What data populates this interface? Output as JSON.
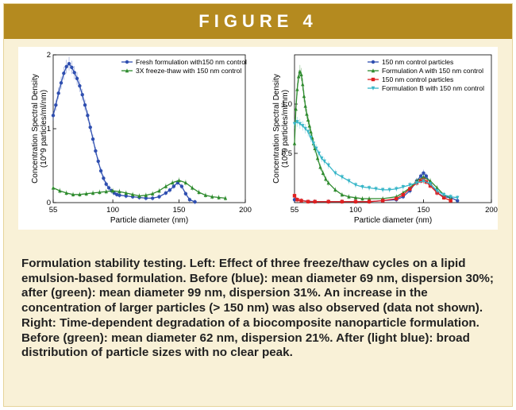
{
  "figure_label": "FIGURE 4",
  "caption": "Formulation stability testing. Left: Effect of three freeze/thaw cycles on a lipid emulsion-based formulation. Before (blue): mean diameter 69 nm, dispersion 30%; after (green): mean diameter 99 nm, dispersion 31%. An increase in the concentration of larger particles (> 150 nm) was also observed (data not shown). Right: Time-dependent degradation of a biocomposite nanoparticle formulation. Before (green): mean diameter 62 nm, dispersion 21%. After (light blue): broad distribution of particle sizes with no clear peak.",
  "colors": {
    "banner": "#b48a1f",
    "background": "#f9f1d7",
    "blue": "#2f4fb0",
    "green": "#2e8b2e",
    "red": "#e02020",
    "light_blue": "#38b6c8"
  },
  "chart_data": [
    {
      "type": "line",
      "xlabel": "Particle diameter (nm)",
      "ylabel_line1": "Concentration Spectral Density",
      "ylabel_line2": "(10^9 particles/ml/nm)",
      "xlim": [
        55,
        200
      ],
      "ylim": [
        0,
        2
      ],
      "xticks": [
        55,
        100,
        150,
        200
      ],
      "yticks": [
        0,
        1,
        2
      ],
      "legend_position": "top-right",
      "series": [
        {
          "name": "Fresh formulation with150 nm control",
          "color": "#2f4fb0",
          "marker": "circle",
          "x": [
            55,
            57,
            59,
            61,
            63,
            65,
            67,
            69,
            71,
            73,
            75,
            77,
            79,
            81,
            83,
            85,
            87,
            89,
            91,
            93,
            95,
            97,
            99,
            101,
            103,
            105,
            110,
            115,
            120,
            125,
            130,
            135,
            140,
            143,
            146,
            149,
            152,
            155,
            158,
            162
          ],
          "y": [
            1.18,
            1.32,
            1.48,
            1.62,
            1.75,
            1.84,
            1.88,
            1.83,
            1.76,
            1.68,
            1.58,
            1.46,
            1.32,
            1.18,
            1.02,
            0.86,
            0.7,
            0.56,
            0.43,
            0.33,
            0.25,
            0.2,
            0.16,
            0.13,
            0.11,
            0.1,
            0.09,
            0.08,
            0.07,
            0.06,
            0.06,
            0.08,
            0.13,
            0.17,
            0.22,
            0.27,
            0.22,
            0.12,
            0.04,
            0.01
          ]
        },
        {
          "name": "3X freeze-thaw with 150 nm control",
          "color": "#2e8b2e",
          "marker": "triangle",
          "x": [
            55,
            60,
            65,
            70,
            75,
            80,
            85,
            90,
            95,
            100,
            105,
            110,
            115,
            120,
            125,
            130,
            135,
            140,
            145,
            150,
            155,
            160,
            165,
            170,
            175,
            180,
            185
          ],
          "y": [
            0.2,
            0.16,
            0.13,
            0.11,
            0.11,
            0.12,
            0.13,
            0.14,
            0.15,
            0.16,
            0.15,
            0.13,
            0.11,
            0.09,
            0.1,
            0.12,
            0.16,
            0.22,
            0.27,
            0.3,
            0.27,
            0.2,
            0.14,
            0.1,
            0.08,
            0.07,
            0.06
          ]
        }
      ]
    },
    {
      "type": "line",
      "xlabel": "Particle diameter (nm)",
      "ylabel_line1": "Concentration Spectral Density",
      "ylabel_line2": "(10^9 particles/ml/nm)",
      "xlim": [
        55,
        200
      ],
      "ylim": [
        0,
        1.5
      ],
      "xticks": [
        55,
        100,
        150,
        200
      ],
      "yticks": [
        0.5,
        1.0
      ],
      "ytick_labels": [
        "0.5",
        "1.0"
      ],
      "legend_position": "top-right",
      "series": [
        {
          "name": "150 nm control particles",
          "color": "#2f4fb0",
          "marker": "circle",
          "x": [
            55,
            60,
            70,
            80,
            90,
            100,
            110,
            120,
            130,
            135,
            140,
            145,
            148,
            150,
            152,
            155,
            160,
            165,
            170,
            175
          ],
          "y": [
            0.03,
            0.02,
            0.01,
            0.01,
            0.01,
            0.01,
            0.01,
            0.02,
            0.03,
            0.06,
            0.12,
            0.22,
            0.27,
            0.3,
            0.27,
            0.2,
            0.1,
            0.06,
            0.05,
            0.02
          ]
        },
        {
          "name": "Formulation A with 150 nm control",
          "color": "#2e8b2e",
          "marker": "triangle",
          "x": [
            55,
            56,
            57,
            58,
            59,
            60,
            61,
            62,
            63,
            64,
            65,
            66,
            67,
            68,
            69,
            70,
            72,
            74,
            76,
            78,
            80,
            85,
            90,
            95,
            100,
            105,
            110,
            120,
            130,
            135,
            140,
            145,
            150,
            155,
            160,
            165,
            170
          ],
          "y": [
            0.6,
            0.95,
            1.15,
            1.28,
            1.33,
            1.3,
            1.2,
            1.08,
            0.98,
            0.9,
            0.84,
            0.78,
            0.72,
            0.66,
            0.6,
            0.55,
            0.45,
            0.36,
            0.3,
            0.24,
            0.2,
            0.13,
            0.08,
            0.06,
            0.05,
            0.04,
            0.04,
            0.04,
            0.06,
            0.1,
            0.15,
            0.22,
            0.26,
            0.22,
            0.15,
            0.08,
            0.05
          ]
        },
        {
          "name": "150 nm control particles",
          "color": "#e02020",
          "marker": "square",
          "x": [
            55,
            57,
            60,
            65,
            70,
            80,
            90,
            100,
            110,
            120,
            130,
            135,
            140,
            145,
            148,
            150,
            152,
            155,
            160,
            165,
            170
          ],
          "y": [
            0.07,
            0.03,
            0.02,
            0.01,
            0.01,
            0.01,
            0.01,
            0.01,
            0.01,
            0.02,
            0.04,
            0.08,
            0.14,
            0.2,
            0.22,
            0.23,
            0.21,
            0.17,
            0.1,
            0.05,
            0.02
          ]
        },
        {
          "name": "Formulation B with 150 nm control",
          "color": "#38b6c8",
          "marker": "triangle-down",
          "x": [
            55,
            57,
            59,
            61,
            63,
            65,
            67,
            69,
            71,
            73,
            75,
            77,
            80,
            85,
            90,
            95,
            100,
            105,
            110,
            115,
            120,
            125,
            130,
            135,
            140,
            145,
            150,
            155,
            160,
            165,
            170,
            175
          ],
          "y": [
            0.8,
            0.82,
            0.8,
            0.78,
            0.75,
            0.72,
            0.66,
            0.6,
            0.55,
            0.5,
            0.45,
            0.42,
            0.38,
            0.3,
            0.26,
            0.22,
            0.18,
            0.16,
            0.15,
            0.14,
            0.13,
            0.13,
            0.14,
            0.16,
            0.18,
            0.2,
            0.22,
            0.19,
            0.12,
            0.08,
            0.06,
            0.05
          ]
        }
      ]
    }
  ]
}
